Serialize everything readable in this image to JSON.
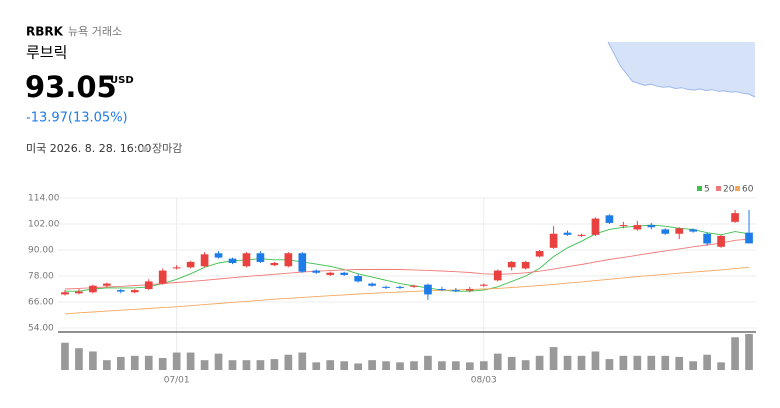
{
  "header": {
    "ticker": "RBRK",
    "exchange": "뉴욕 거래소",
    "name": "루브릭",
    "price": "93.05",
    "currency": "USD",
    "change": "-13.97(13.05%)",
    "datetime": "미국 2026. 8. 28. 16:00",
    "status": "장마감"
  },
  "chart_data": [
    {
      "type": "area",
      "color": "#d6e2f8",
      "line_color": "#9db8ea",
      "values": [
        107,
        104,
        101,
        99,
        97,
        96.5,
        96,
        96.3,
        95.8,
        95.5,
        95.7,
        95.2,
        95.4,
        95,
        94.8,
        95.1,
        94.7,
        94.9,
        94.5,
        94.6,
        94.3,
        94.4,
        94,
        93.8,
        93.05
      ]
    },
    {
      "type": "candlestick",
      "up_color": "#e8413f",
      "down_color": "#1e7ce8",
      "grid": true,
      "categories": [
        null,
        null,
        null,
        null,
        null,
        null,
        null,
        null,
        "07/01",
        null,
        null,
        null,
        null,
        null,
        null,
        null,
        null,
        null,
        null,
        null,
        null,
        null,
        null,
        null,
        null,
        null,
        null,
        null,
        null,
        null,
        "08/03",
        null,
        null,
        null,
        null,
        null,
        null,
        null,
        null,
        null,
        null,
        null,
        null,
        null,
        null,
        null,
        null,
        null,
        null,
        null
      ],
      "open": [
        69.5,
        70,
        70.5,
        73.5,
        71.5,
        70.5,
        72,
        74.5,
        81.5,
        82,
        82.5,
        88.5,
        86,
        82.5,
        88.5,
        83,
        82.5,
        88.5,
        80.5,
        78.5,
        79.5,
        78,
        74.5,
        73,
        73,
        73,
        74,
        72,
        71.5,
        71.3,
        73.5,
        76,
        82,
        81.5,
        87,
        91,
        98,
        96.5,
        97,
        106,
        101,
        99.5,
        101.5,
        99.5,
        97.5,
        99.5,
        97.5,
        91.5,
        103,
        98
      ],
      "high": [
        71.5,
        72,
        74,
        75,
        72,
        72,
        76.5,
        81.5,
        83,
        85,
        89,
        89.5,
        86.5,
        89,
        89.5,
        84.5,
        89,
        89,
        81,
        80,
        80,
        79,
        75,
        73.5,
        73.5,
        74,
        74.5,
        73,
        72.5,
        73,
        74.5,
        81,
        85,
        85,
        90,
        101,
        99,
        97.5,
        105,
        106.5,
        103,
        103.5,
        102.5,
        100,
        100.5,
        100,
        98,
        97,
        108.5,
        108.5
      ],
      "low": [
        69,
        69.5,
        70,
        73,
        70,
        70,
        71.5,
        74,
        81,
        81.5,
        82,
        86,
        83.5,
        82,
        84,
        82.5,
        82,
        79.5,
        79,
        78,
        78,
        75,
        73,
        72,
        72,
        72.5,
        67,
        71,
        70.5,
        70.5,
        73,
        75.5,
        80.5,
        81,
        86.5,
        90.5,
        96.5,
        96,
        96.5,
        102,
        100,
        99,
        99.5,
        97,
        95,
        98,
        92,
        91,
        102.5,
        93
      ],
      "close": [
        70.5,
        70.8,
        73.5,
        74.5,
        70.8,
        71.5,
        75.5,
        80.5,
        82,
        84.5,
        88,
        86.5,
        84,
        88.5,
        84.5,
        84,
        88.5,
        80,
        79.5,
        79.5,
        78.5,
        75.5,
        73.5,
        72.5,
        72.5,
        73.5,
        69.5,
        71.5,
        71,
        72,
        74,
        80.5,
        84.5,
        84.5,
        89.5,
        97.5,
        97,
        97,
        104.5,
        102.5,
        101.5,
        101.5,
        100.5,
        97.5,
        100,
        98.5,
        93,
        96.5,
        107.02,
        93.05
      ],
      "series": [
        {
          "name": "5",
          "color": "#3cc04d",
          "values": [
            71,
            71,
            72,
            72.5,
            72.5,
            72.5,
            73,
            74.5,
            76.5,
            79,
            82,
            84,
            85,
            85.5,
            86,
            85.5,
            85.5,
            84.5,
            83.5,
            82.5,
            81,
            79,
            77.5,
            76,
            74.5,
            73.5,
            72.5,
            71.5,
            71,
            71,
            71.5,
            73,
            75.5,
            78,
            81.5,
            87,
            91,
            94,
            97.5,
            99.5,
            100.5,
            101,
            101.5,
            101,
            100,
            99.5,
            98,
            97,
            98.5,
            97.5
          ]
        },
        {
          "name": "20",
          "color": "#f07a7a",
          "values": [
            72,
            72.3,
            72.6,
            72.9,
            73.2,
            73.6,
            74,
            74.5,
            75,
            75.5,
            76,
            76.6,
            77.2,
            77.8,
            78.3,
            78.8,
            79.3,
            79.8,
            80.2,
            80.5,
            80.8,
            81,
            81,
            81,
            81,
            80.8,
            80.6,
            80.3,
            80,
            79.6,
            79,
            78.8,
            79,
            79.5,
            80.2,
            81.2,
            82.3,
            83.3,
            84.5,
            85.6,
            86.6,
            87.6,
            88.6,
            89.6,
            90.5,
            91.5,
            92.3,
            93.2,
            94.5,
            95
          ]
        },
        {
          "name": "60",
          "color": "#f5a860",
          "values": [
            60.5,
            61,
            61.4,
            61.8,
            62.2,
            62.6,
            63,
            63.4,
            63.8,
            64.3,
            64.8,
            65.3,
            65.8,
            66.3,
            66.8,
            67.3,
            67.7,
            68.1,
            68.5,
            68.9,
            69.3,
            69.7,
            70,
            70.3,
            70.6,
            70.9,
            71.2,
            71.4,
            71.6,
            71.8,
            72,
            72.3,
            72.7,
            73.1,
            73.6,
            74.1,
            74.7,
            75.3,
            75.9,
            76.5,
            77.1,
            77.7,
            78.3,
            78.8,
            79.3,
            79.8,
            80.3,
            80.8,
            81.4,
            82
          ]
        }
      ],
      "volume": {
        "color": "#999999",
        "values": [
          25,
          20,
          17,
          9,
          12,
          13,
          13,
          11,
          16,
          16,
          9,
          15,
          9,
          9,
          9,
          10,
          14,
          16,
          7,
          9,
          8,
          6,
          9,
          8,
          7,
          8,
          13,
          8,
          8,
          7,
          8,
          15,
          12,
          9,
          13,
          21,
          13,
          13,
          17,
          10,
          13,
          13,
          13,
          13,
          12,
          8,
          14,
          7,
          30,
          33
        ]
      },
      "ylim": [
        54,
        114
      ],
      "yticks": [
        {
          "value": 54,
          "label": "54.00"
        },
        {
          "value": 66,
          "label": "66.00"
        },
        {
          "value": 78,
          "label": "78.00"
        },
        {
          "value": 90,
          "label": "90.00"
        },
        {
          "value": 102,
          "label": "102.00"
        },
        {
          "value": 114,
          "label": "114.00"
        }
      ]
    }
  ]
}
